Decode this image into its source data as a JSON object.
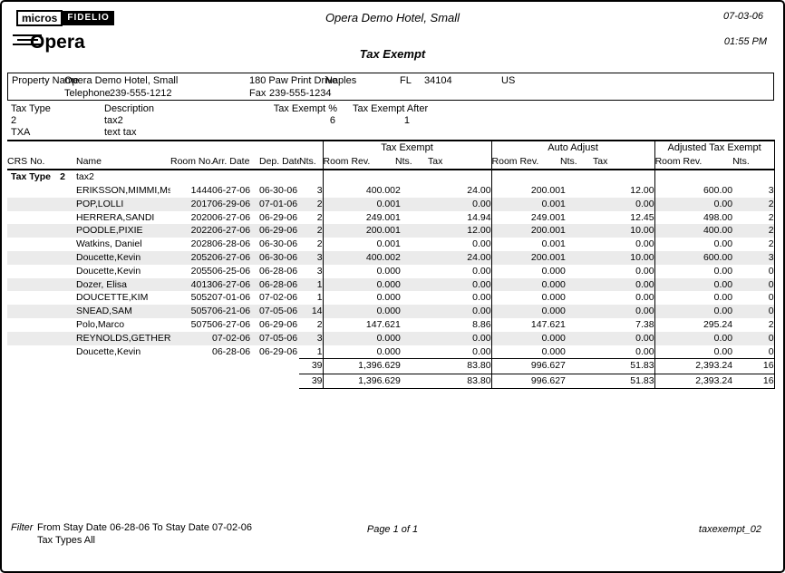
{
  "header": {
    "micros_label": "micros",
    "fidelio_label": "FIDELIO",
    "opera_label": "Opera",
    "hotel_name": "Opera Demo Hotel, Small",
    "report_title": "Tax Exempt",
    "date": "07-03-06",
    "time": "01:55 PM"
  },
  "property": {
    "label": "Property Name",
    "name": "Opera Demo Hotel, Small",
    "address": "180 Paw Print Drive",
    "city": "Naples",
    "state": "FL",
    "zip": "34104",
    "country": "US",
    "telephone_label": "Telephone",
    "telephone": "239-555-1212",
    "fax_label": "Fax",
    "fax": "239-555-1234"
  },
  "tax_type_section": {
    "headers": {
      "tax_type": "Tax Type",
      "description": "Description",
      "exempt_pct": "Tax Exempt %",
      "exempt_after": "Tax Exempt After"
    },
    "rows": [
      {
        "tax_type": "2",
        "description": "tax2",
        "exempt_pct": "6",
        "exempt_after": "1"
      },
      {
        "tax_type": "TXA",
        "description": "text tax",
        "exempt_pct": "",
        "exempt_after": ""
      }
    ]
  },
  "report_table": {
    "group_headers": {
      "tax_exempt": "Tax Exempt",
      "auto_adjust": "Auto Adjust",
      "adjusted": "Adjusted Tax Exempt"
    },
    "col_headers": {
      "crs": "CRS No.",
      "name": "Name",
      "room": "Room No.",
      "arr": "Arr. Date",
      "dep": "Dep. Date",
      "nts": "Nts.",
      "te_rev": "Room Rev.",
      "te_nts": "Nts.",
      "te_tax": "Tax",
      "aa_rev": "Room Rev.",
      "aa_nts": "Nts.",
      "aa_tax": "Tax",
      "adj_rev": "Room Rev.",
      "adj_nts": "Nts."
    },
    "group_row": {
      "label": "Tax Type",
      "code": "2",
      "name": "tax2"
    },
    "rows": [
      {
        "crs": "",
        "name": "ERIKSSON,MIMMI,Ms.",
        "room": "1444",
        "arr": "06-27-06",
        "dep": "06-30-06",
        "nts": "3",
        "te_rev": "400.00",
        "te_nts": "2",
        "te_tax": "24.00",
        "aa_rev": "200.00",
        "aa_nts": "1",
        "aa_tax": "12.00",
        "adj_rev": "600.00",
        "adj_nts": "3"
      },
      {
        "crs": "",
        "name": "POP,LOLLI",
        "room": "2017",
        "arr": "06-29-06",
        "dep": "07-01-06",
        "nts": "2",
        "te_rev": "0.00",
        "te_nts": "1",
        "te_tax": "0.00",
        "aa_rev": "0.00",
        "aa_nts": "1",
        "aa_tax": "0.00",
        "adj_rev": "0.00",
        "adj_nts": "2"
      },
      {
        "crs": "",
        "name": "HERRERA,SANDI",
        "room": "2020",
        "arr": "06-27-06",
        "dep": "06-29-06",
        "nts": "2",
        "te_rev": "249.00",
        "te_nts": "1",
        "te_tax": "14.94",
        "aa_rev": "249.00",
        "aa_nts": "1",
        "aa_tax": "12.45",
        "adj_rev": "498.00",
        "adj_nts": "2"
      },
      {
        "crs": "",
        "name": "POODLE,PIXIE",
        "room": "2022",
        "arr": "06-27-06",
        "dep": "06-29-06",
        "nts": "2",
        "te_rev": "200.00",
        "te_nts": "1",
        "te_tax": "12.00",
        "aa_rev": "200.00",
        "aa_nts": "1",
        "aa_tax": "10.00",
        "adj_rev": "400.00",
        "adj_nts": "2"
      },
      {
        "crs": "",
        "name": "Watkins, Daniel",
        "room": "2028",
        "arr": "06-28-06",
        "dep": "06-30-06",
        "nts": "2",
        "te_rev": "0.00",
        "te_nts": "1",
        "te_tax": "0.00",
        "aa_rev": "0.00",
        "aa_nts": "1",
        "aa_tax": "0.00",
        "adj_rev": "0.00",
        "adj_nts": "2"
      },
      {
        "crs": "",
        "name": "Doucette,Kevin",
        "room": "2052",
        "arr": "06-27-06",
        "dep": "06-30-06",
        "nts": "3",
        "te_rev": "400.00",
        "te_nts": "2",
        "te_tax": "24.00",
        "aa_rev": "200.00",
        "aa_nts": "1",
        "aa_tax": "10.00",
        "adj_rev": "600.00",
        "adj_nts": "3"
      },
      {
        "crs": "",
        "name": "Doucette,Kevin",
        "room": "2055",
        "arr": "06-25-06",
        "dep": "06-28-06",
        "nts": "3",
        "te_rev": "0.00",
        "te_nts": "0",
        "te_tax": "0.00",
        "aa_rev": "0.00",
        "aa_nts": "0",
        "aa_tax": "0.00",
        "adj_rev": "0.00",
        "adj_nts": "0"
      },
      {
        "crs": "",
        "name": "Dozer, Elisa",
        "room": "4013",
        "arr": "06-27-06",
        "dep": "06-28-06",
        "nts": "1",
        "te_rev": "0.00",
        "te_nts": "0",
        "te_tax": "0.00",
        "aa_rev": "0.00",
        "aa_nts": "0",
        "aa_tax": "0.00",
        "adj_rev": "0.00",
        "adj_nts": "0"
      },
      {
        "crs": "",
        "name": "DOUCETTE,KIM",
        "room": "5052",
        "arr": "07-01-06",
        "dep": "07-02-06",
        "nts": "1",
        "te_rev": "0.00",
        "te_nts": "0",
        "te_tax": "0.00",
        "aa_rev": "0.00",
        "aa_nts": "0",
        "aa_tax": "0.00",
        "adj_rev": "0.00",
        "adj_nts": "0"
      },
      {
        "crs": "",
        "name": "SNEAD,SAM",
        "room": "5057",
        "arr": "06-21-06",
        "dep": "07-05-06",
        "nts": "14",
        "te_rev": "0.00",
        "te_nts": "0",
        "te_tax": "0.00",
        "aa_rev": "0.00",
        "aa_nts": "0",
        "aa_tax": "0.00",
        "adj_rev": "0.00",
        "adj_nts": "0"
      },
      {
        "crs": "",
        "name": "Polo,Marco",
        "room": "5075",
        "arr": "06-27-06",
        "dep": "06-29-06",
        "nts": "2",
        "te_rev": "147.62",
        "te_nts": "1",
        "te_tax": "8.86",
        "aa_rev": "147.62",
        "aa_nts": "1",
        "aa_tax": "7.38",
        "adj_rev": "295.24",
        "adj_nts": "2"
      },
      {
        "crs": "",
        "name": "REYNOLDS,GETHER",
        "room": "",
        "arr": "07-02-06",
        "dep": "07-05-06",
        "nts": "3",
        "te_rev": "0.00",
        "te_nts": "0",
        "te_tax": "0.00",
        "aa_rev": "0.00",
        "aa_nts": "0",
        "aa_tax": "0.00",
        "adj_rev": "0.00",
        "adj_nts": "0"
      },
      {
        "crs": "",
        "name": "Doucette,Kevin",
        "room": "",
        "arr": "06-28-06",
        "dep": "06-29-06",
        "nts": "1",
        "te_rev": "0.00",
        "te_nts": "0",
        "te_tax": "0.00",
        "aa_rev": "0.00",
        "aa_nts": "0",
        "aa_tax": "0.00",
        "adj_rev": "0.00",
        "adj_nts": "0"
      }
    ],
    "totals": [
      {
        "crs": "",
        "name": "",
        "room": "",
        "arr": "",
        "dep": "",
        "nts": "39",
        "te_rev": "1,396.62",
        "te_nts": "9",
        "te_tax": "83.80",
        "aa_rev": "996.62",
        "aa_nts": "7",
        "aa_tax": "51.83",
        "adj_rev": "2,393.24",
        "adj_nts": "16"
      },
      {
        "crs": "",
        "name": "",
        "room": "",
        "arr": "",
        "dep": "",
        "nts": "39",
        "te_rev": "1,396.62",
        "te_nts": "9",
        "te_tax": "83.80",
        "aa_rev": "996.62",
        "aa_nts": "7",
        "aa_tax": "51.83",
        "adj_rev": "2,393.24",
        "adj_nts": "16"
      }
    ]
  },
  "footer": {
    "filter_label": "Filter",
    "filter_line1": "From Stay Date 06-28-06   To Stay Date 07-02-06",
    "filter_line2": "Tax Types All",
    "page_label": "Page 1 of 1",
    "report_id": "taxexempt_02"
  }
}
